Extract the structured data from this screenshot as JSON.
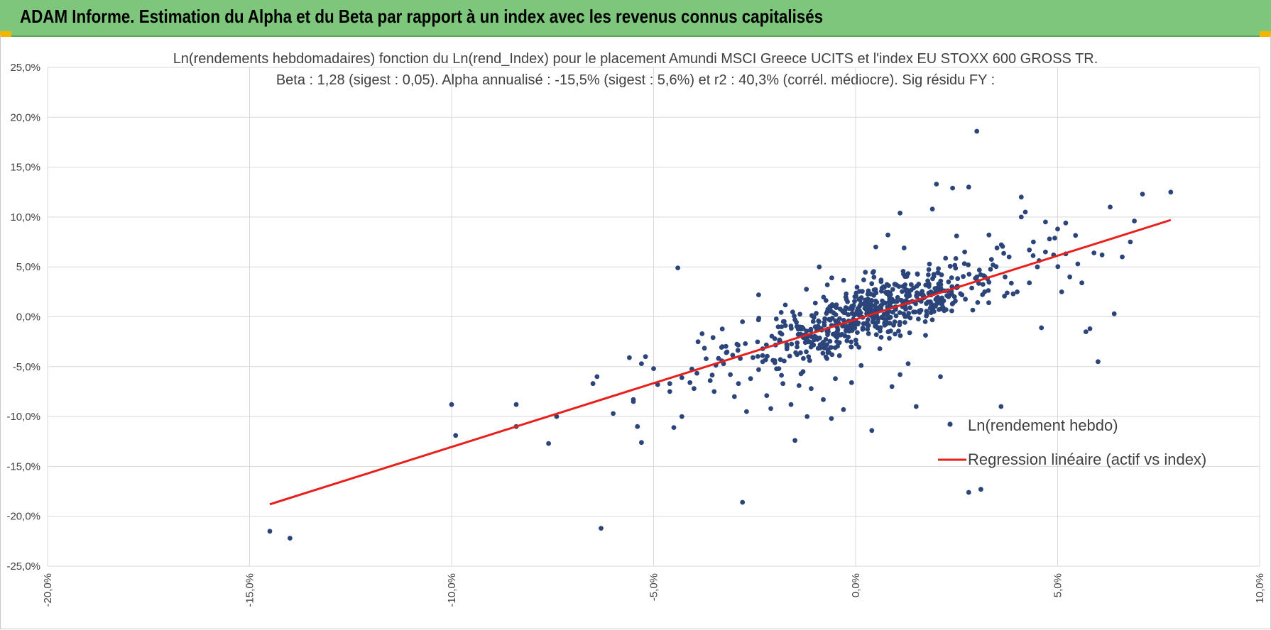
{
  "header": {
    "title": "ADAM Informe. Estimation du Alpha et du Beta par rapport à un index avec les revenus connus capitalisés"
  },
  "colors": {
    "banner": "#7dc67c",
    "points": "#2b4479",
    "regression": "#e8201b",
    "grid": "#d9d9d9"
  },
  "chart_data": {
    "type": "scatter",
    "title_line1": "Ln(rendements hebdomadaires) fonction du Ln(rend_Index) pour le placement Amundi MSCI Greece UCITS  et l'index EU STOXX 600 GROSS TR.",
    "title_line2": "Beta : 1,28 (sigest : 0,05).  Alpha annualisé : -15,5% (sigest : 5,6%) et r2 : 40,3% (corrél. médiocre). Sig résidu FY :",
    "xlim": [
      -0.2,
      0.1
    ],
    "ylim": [
      -0.25,
      0.25
    ],
    "x_ticks": [
      -0.2,
      -0.15,
      -0.1,
      -0.05,
      0.0,
      0.05,
      0.1
    ],
    "x_tick_labels": [
      "-20,0%",
      "-15,0%",
      "-10,0%",
      "-5,0%",
      "0,0%",
      "5,0%",
      "10,0%"
    ],
    "y_ticks": [
      0.25,
      0.2,
      0.15,
      0.1,
      0.05,
      0.0,
      -0.05,
      -0.1,
      -0.15,
      -0.2,
      -0.25
    ],
    "y_tick_labels": [
      "25,0%",
      "20,0%",
      "15,0%",
      "10,0%",
      "5,0%",
      "0,0%",
      "-5,0%",
      "-10,0%",
      "-15,0%",
      "-20,0%",
      "-25,0%"
    ],
    "legend": {
      "position": "bottom-right",
      "points_label": "Ln(rendement hebdo)",
      "line_label": "Regression linéaire (actif vs index)"
    },
    "regression": {
      "beta": 1.28,
      "x_start": -0.145,
      "y_start": -0.188,
      "x_end": 0.078,
      "y_end": 0.097
    },
    "cluster": {
      "count": 620,
      "seed": 20240611,
      "x_mean": 0.0045,
      "x_sd": 0.0155,
      "y_sd": 0.028
    },
    "outliers": [
      [
        -0.145,
        -0.215
      ],
      [
        -0.14,
        -0.222
      ],
      [
        -0.1,
        -0.088
      ],
      [
        -0.099,
        -0.119
      ],
      [
        -0.084,
        -0.088
      ],
      [
        -0.084,
        -0.11
      ],
      [
        -0.076,
        -0.127
      ],
      [
        -0.074,
        -0.1
      ],
      [
        -0.065,
        -0.067
      ],
      [
        -0.064,
        -0.06
      ],
      [
        -0.063,
        -0.212
      ],
      [
        -0.06,
        -0.097
      ],
      [
        -0.056,
        -0.041
      ],
      [
        -0.055,
        -0.085
      ],
      [
        -0.055,
        -0.083
      ],
      [
        -0.054,
        -0.11
      ],
      [
        -0.053,
        -0.047
      ],
      [
        -0.053,
        -0.126
      ],
      [
        -0.052,
        -0.04
      ],
      [
        -0.05,
        -0.052
      ],
      [
        -0.049,
        -0.068
      ],
      [
        -0.046,
        -0.067
      ],
      [
        -0.046,
        -0.075
      ],
      [
        -0.045,
        -0.111
      ],
      [
        -0.044,
        0.049
      ],
      [
        -0.043,
        -0.1
      ],
      [
        -0.043,
        -0.061
      ],
      [
        -0.041,
        -0.066
      ],
      [
        -0.04,
        -0.072
      ],
      [
        -0.039,
        -0.025
      ],
      [
        -0.038,
        -0.017
      ],
      [
        -0.037,
        -0.042
      ],
      [
        -0.036,
        -0.064
      ],
      [
        -0.035,
        -0.075
      ],
      [
        -0.033,
        -0.03
      ],
      [
        -0.032,
        -0.036
      ],
      [
        -0.031,
        -0.058
      ],
      [
        -0.03,
        -0.08
      ],
      [
        -0.029,
        -0.067
      ],
      [
        -0.028,
        -0.005
      ],
      [
        -0.028,
        -0.186
      ],
      [
        -0.027,
        -0.095
      ],
      [
        -0.026,
        -0.062
      ],
      [
        -0.024,
        0.022
      ],
      [
        -0.024,
        -0.053
      ],
      [
        -0.023,
        -0.045
      ],
      [
        -0.023,
        -0.032
      ],
      [
        -0.022,
        -0.079
      ],
      [
        -0.021,
        -0.092
      ],
      [
        -0.02,
        -0.022
      ],
      [
        -0.02,
        -0.046
      ],
      [
        -0.019,
        -0.052
      ],
      [
        -0.018,
        -0.067
      ],
      [
        -0.017,
        -0.03
      ],
      [
        -0.016,
        -0.088
      ],
      [
        -0.015,
        -0.124
      ],
      [
        -0.015,
        -0.003
      ],
      [
        -0.014,
        -0.069
      ],
      [
        -0.013,
        -0.055
      ],
      [
        -0.012,
        -0.1
      ],
      [
        -0.011,
        -0.072
      ],
      [
        -0.01,
        -0.01
      ],
      [
        -0.009,
        0.05
      ],
      [
        -0.008,
        -0.083
      ],
      [
        -0.007,
        0.032
      ],
      [
        -0.006,
        -0.102
      ],
      [
        -0.005,
        -0.062
      ],
      [
        -0.004,
        -0.039
      ],
      [
        -0.003,
        -0.093
      ],
      [
        -0.002,
        0.015
      ],
      [
        -0.001,
        -0.066
      ],
      [
        0.0,
        -0.004
      ],
      [
        0.002,
        0.037
      ],
      [
        0.004,
        -0.114
      ],
      [
        0.005,
        0.07
      ],
      [
        0.006,
        -0.032
      ],
      [
        0.008,
        0.082
      ],
      [
        0.009,
        -0.07
      ],
      [
        0.011,
        -0.058
      ],
      [
        0.011,
        0.104
      ],
      [
        0.012,
        0.069
      ],
      [
        0.013,
        -0.047
      ],
      [
        0.015,
        -0.09
      ],
      [
        0.016,
        0.023
      ],
      [
        0.018,
        0.042
      ],
      [
        0.019,
        0.108
      ],
      [
        0.02,
        0.133
      ],
      [
        0.021,
        -0.06
      ],
      [
        0.023,
        0.035
      ],
      [
        0.024,
        0.129
      ],
      [
        0.025,
        0.081
      ],
      [
        0.027,
        0.065
      ],
      [
        0.028,
        0.13
      ],
      [
        0.028,
        -0.176
      ],
      [
        0.03,
        0.186
      ],
      [
        0.03,
        0.04
      ],
      [
        0.031,
        -0.173
      ],
      [
        0.033,
        0.082
      ],
      [
        0.034,
        0.052
      ],
      [
        0.035,
        0.069
      ],
      [
        0.036,
        -0.09
      ],
      [
        0.037,
        0.04
      ],
      [
        0.038,
        0.06
      ],
      [
        0.039,
        0.023
      ],
      [
        0.04,
        0.025
      ],
      [
        0.041,
        0.1
      ],
      [
        0.041,
        0.12
      ],
      [
        0.042,
        0.105
      ],
      [
        0.043,
        0.034
      ],
      [
        0.044,
        0.075
      ],
      [
        0.045,
        0.05
      ],
      [
        0.046,
        -0.011
      ],
      [
        0.047,
        0.095
      ],
      [
        0.048,
        0.078
      ],
      [
        0.049,
        0.062
      ],
      [
        0.05,
        0.088
      ],
      [
        0.051,
        0.025
      ],
      [
        0.052,
        0.094
      ],
      [
        0.053,
        0.04
      ],
      [
        0.055,
        0.053
      ],
      [
        0.056,
        0.034
      ],
      [
        0.057,
        -0.015
      ],
      [
        0.058,
        -0.012
      ],
      [
        0.059,
        0.064
      ],
      [
        0.06,
        -0.045
      ],
      [
        0.061,
        0.062
      ],
      [
        0.063,
        0.11
      ],
      [
        0.064,
        0.003
      ],
      [
        0.066,
        0.06
      ],
      [
        0.069,
        0.096
      ],
      [
        0.068,
        0.075
      ],
      [
        0.071,
        0.123
      ],
      [
        0.078,
        0.125
      ],
      [
        0.052,
        0.063
      ],
      [
        0.047,
        0.065
      ],
      [
        0.043,
        0.067
      ]
    ]
  }
}
